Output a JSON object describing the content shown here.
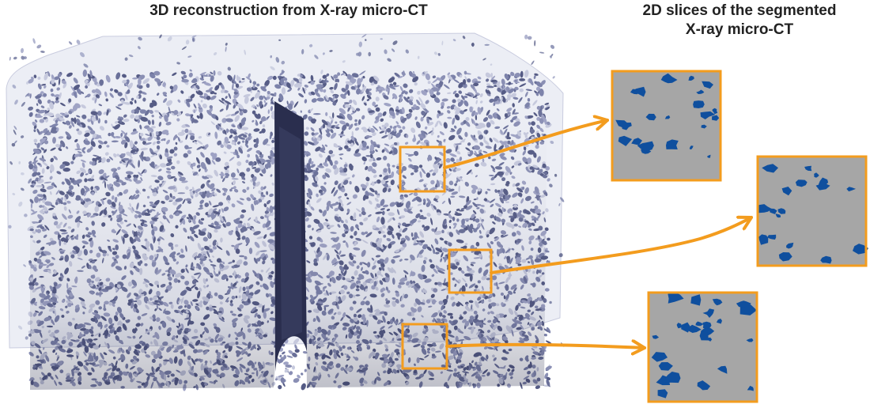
{
  "titles": {
    "left": "3D reconstruction from X-ray micro-CT",
    "right_line1": "2D slices of the segmented",
    "right_line2": "X-ray micro-CT"
  },
  "colors": {
    "accent": "#F39C1E",
    "particle": "#8A8FB4",
    "particle_dark": "#555B85",
    "particle_light": "#C6C9DD",
    "slice_bg": "#A6A6A6",
    "pore": "#0F4F9E"
  }
}
